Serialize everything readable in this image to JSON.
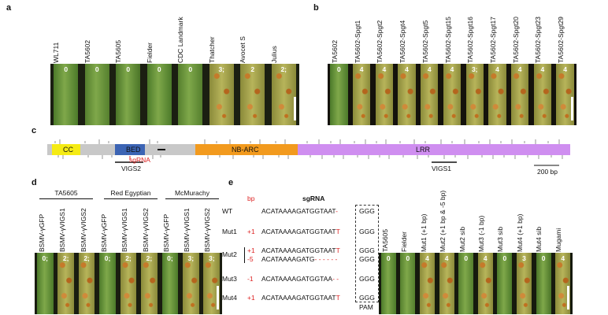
{
  "panel_a": {
    "letter": "a",
    "labels": [
      "WL711",
      "TA5602",
      "TA5605",
      "Fielder",
      "CDC Landmark",
      "Thatcher",
      "Avocet S",
      "Julius"
    ],
    "scores": [
      "0",
      "0",
      "0",
      "0",
      "0",
      "3;",
      "2",
      "2;"
    ]
  },
  "panel_b": {
    "letter": "b",
    "labels": [
      "TA5602",
      "TA5602-Spgt1",
      "TA5602-Spgt2",
      "TA5602-Spgt4",
      "TA5602-Spgt5",
      "TA5602-Spgt15",
      "TA5602-Spgt16",
      "TA5602-Spgt17",
      "TA5602-Spgt20",
      "TA5602-Spgt23",
      "TA5602-Spgt29"
    ],
    "scores": [
      "0",
      "4",
      "4",
      "4",
      "4",
      "4",
      "3;",
      "4",
      "4",
      "4",
      "4"
    ]
  },
  "panel_c": {
    "letter": "c",
    "domains": {
      "cc": "CC",
      "bed": "BED",
      "nbarc": "NB-ARC",
      "lrr": "LRR"
    },
    "sgrna": "sgRNA",
    "vigs2": "VIGS2",
    "vigs1": "VIGS1",
    "scalebar": "200 bp"
  },
  "panel_d": {
    "letter": "d",
    "groups": [
      "TA5605",
      "Red Egyptian",
      "McMurachy"
    ],
    "labels": [
      "BSMV-γGFP",
      "BSMV-γVIGS1",
      "BSMV-γVIGS2",
      "BSMV-γGFP",
      "BSMV-γVIGS1",
      "BSMV-γVIGS2",
      "BSMV-γGFP",
      "BSMV-γVIGS1",
      "BSMV-γVIGS2"
    ],
    "scores": [
      "0;",
      "2;",
      "2;",
      "0;",
      "2;",
      "2;",
      "0;",
      "3;",
      "3;"
    ]
  },
  "panel_e": {
    "letter": "e",
    "bp_header": "bp",
    "sgrna_header": "sgRNA",
    "pam": "PAM",
    "rows": [
      {
        "name": "WT",
        "bp": "",
        "seq": "ACATAAAAGATGGTAAT",
        "ins": "",
        "gap": "-",
        "pam": "GGG"
      },
      {
        "name": "Mut1",
        "bp": "+1",
        "seq": "ACATAAAAGATGGTAAT",
        "ins": "T",
        "gap": "",
        "pam": "GGG"
      },
      {
        "name": "Mut2",
        "bp": "+1",
        "seq": "ACATAAAAGATGGTAAT",
        "ins": "T",
        "gap": "",
        "pam": "GGG"
      },
      {
        "name": "",
        "bp": "-5",
        "seq": "ACATAAAAGATG",
        "ins": "",
        "gap": "- - - - - -",
        "pam": "GGG"
      },
      {
        "name": "Mut3",
        "bp": "-1",
        "seq": "ACATAAAAGATGGTAA",
        "ins": "",
        "gap": "- -",
        "pam": "GGG"
      },
      {
        "name": "Mut4",
        "bp": "+1",
        "seq": "ACATAAAAGATGGTAAT",
        "ins": "T",
        "gap": "",
        "pam": "GGG"
      }
    ],
    "labels": [
      "TA5605",
      "Fielder",
      "Mut1 (+1 bp)",
      "Mut2 (+1 bp & -5 bp)",
      "Mut2 sib",
      "Mut3 (-1 bp)",
      "Mut3 sib",
      "Mut4 (+1 bp)",
      "Mut4 sib",
      "Mugami"
    ],
    "scores": [
      "0",
      "0",
      "4",
      "4",
      "0",
      "4",
      "0",
      "3",
      "0",
      "4"
    ]
  }
}
